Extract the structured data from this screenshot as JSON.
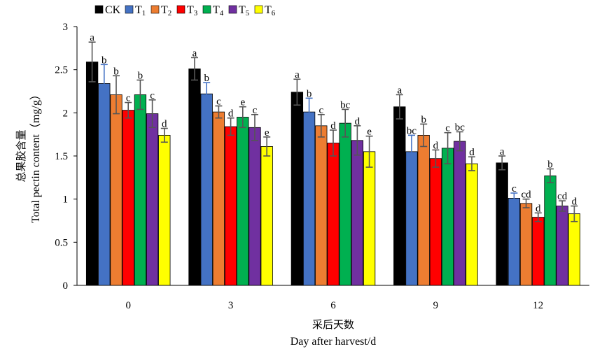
{
  "chart_data": {
    "type": "bar",
    "xlabel_cn": "采后天数",
    "xlabel_en": "Day after harvest/d",
    "ylabel_cn": "总果胶含量",
    "ylabel_en": "Total pectin content（mg/g）",
    "ylim": [
      0,
      3
    ],
    "yticks": [
      "0",
      "0.5",
      "1",
      "1.5",
      "2",
      "2.5",
      "3"
    ],
    "categories": [
      "0",
      "3",
      "6",
      "9",
      "12"
    ],
    "legend_position": "top-left",
    "series": [
      {
        "name": "CK",
        "sub": "",
        "color": "#000000",
        "errcolor": "#555555",
        "values": [
          2.59,
          2.51,
          2.24,
          2.07,
          1.42
        ],
        "errors": [
          0.23,
          0.13,
          0.15,
          0.14,
          0.08
        ],
        "letters": [
          "a",
          "a",
          "a",
          "a",
          "a"
        ]
      },
      {
        "name": "T",
        "sub": "1",
        "color": "#4472C4",
        "errcolor": "#4472C4",
        "values": [
          2.34,
          2.22,
          2.01,
          1.55,
          1.01
        ],
        "errors": [
          0.22,
          0.13,
          0.16,
          0.19,
          0.06
        ],
        "letters": [
          "b",
          "b",
          "b",
          "bc",
          "c"
        ]
      },
      {
        "name": "T",
        "sub": "2",
        "color": "#ED7D31",
        "errcolor": "#555555",
        "values": [
          2.21,
          2.01,
          1.85,
          1.74,
          0.95
        ],
        "errors": [
          0.22,
          0.07,
          0.13,
          0.13,
          0.05
        ],
        "letters": [
          "b",
          "c",
          "c",
          "b",
          "cd"
        ]
      },
      {
        "name": "T",
        "sub": "3",
        "color": "#FF0000",
        "errcolor": "#555555",
        "values": [
          2.03,
          1.84,
          1.65,
          1.47,
          0.79
        ],
        "errors": [
          0.09,
          0.1,
          0.15,
          0.1,
          0.05
        ],
        "letters": [
          "c",
          "d",
          "d",
          "d",
          "d"
        ]
      },
      {
        "name": "T",
        "sub": "4",
        "color": "#00B050",
        "errcolor": "#555555",
        "values": [
          2.21,
          1.95,
          1.88,
          1.59,
          1.27
        ],
        "errors": [
          0.17,
          0.12,
          0.16,
          0.18,
          0.08
        ],
        "letters": [
          "b",
          "e",
          "bc",
          "c",
          "b"
        ]
      },
      {
        "name": "T",
        "sub": "5",
        "color": "#7030A0",
        "errcolor": "#555555",
        "values": [
          1.99,
          1.83,
          1.68,
          1.67,
          0.92
        ],
        "errors": [
          0.16,
          0.15,
          0.17,
          0.11,
          0.06
        ],
        "letters": [
          "c",
          "c",
          "d",
          "bc",
          "cd"
        ]
      },
      {
        "name": "T",
        "sub": "6",
        "color": "#FFFF00",
        "errcolor": "#555555",
        "values": [
          1.74,
          1.61,
          1.55,
          1.41,
          0.83
        ],
        "errors": [
          0.08,
          0.11,
          0.18,
          0.08,
          0.09
        ],
        "letters": [
          "d",
          "e",
          "e",
          "d",
          "d"
        ]
      }
    ]
  }
}
